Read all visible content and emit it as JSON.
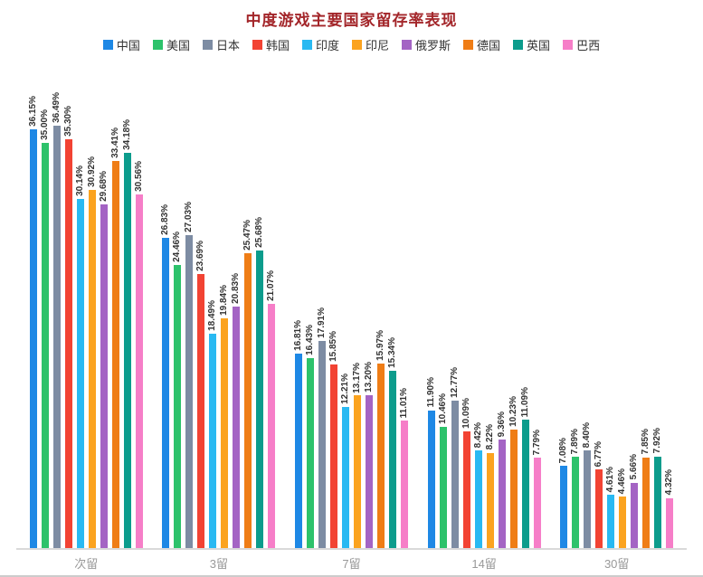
{
  "title": "中度游戏主要国家留存率表现",
  "colors": {
    "title": "#a3262a",
    "value_label": "#333333",
    "axis_label": "#999999",
    "axis_line": "#d9d9d9",
    "legend_text": "#333333"
  },
  "chart_data": {
    "type": "bar",
    "title": "中度游戏主要国家留存率表现",
    "categories": [
      "次留",
      "3留",
      "7留",
      "14留",
      "30留"
    ],
    "unit": "%",
    "ylim": [
      0,
      40
    ],
    "grid": false,
    "legend_position": "top",
    "value_label_style": "rotated-vertical",
    "series": [
      {
        "name": "中国",
        "color": "#1E88E5",
        "values": [
          36.15,
          26.83,
          16.81,
          11.9,
          7.08
        ]
      },
      {
        "name": "美国",
        "color": "#2DC26B",
        "values": [
          35.0,
          24.46,
          16.43,
          10.46,
          7.89
        ]
      },
      {
        "name": "日本",
        "color": "#7D8CA3",
        "values": [
          36.49,
          27.03,
          17.91,
          12.77,
          8.4
        ]
      },
      {
        "name": "韩国",
        "color": "#F24333",
        "values": [
          35.3,
          23.69,
          15.85,
          10.09,
          6.77
        ]
      },
      {
        "name": "印度",
        "color": "#29B9F2",
        "values": [
          30.14,
          18.49,
          12.21,
          8.42,
          4.61
        ]
      },
      {
        "name": "印尼",
        "color": "#FBA31F",
        "values": [
          30.92,
          19.84,
          13.17,
          8.22,
          4.46
        ]
      },
      {
        "name": "俄罗斯",
        "color": "#A464C4",
        "values": [
          29.68,
          20.83,
          13.2,
          9.36,
          5.66
        ]
      },
      {
        "name": "德国",
        "color": "#EF7D16",
        "values": [
          33.41,
          25.47,
          15.97,
          10.23,
          7.85
        ]
      },
      {
        "name": "英国",
        "color": "#0C9C8C",
        "values": [
          34.18,
          25.68,
          15.34,
          11.09,
          7.92
        ]
      },
      {
        "name": "巴西",
        "color": "#F67EC8",
        "values": [
          30.56,
          21.07,
          11.01,
          7.79,
          4.32
        ]
      }
    ]
  }
}
